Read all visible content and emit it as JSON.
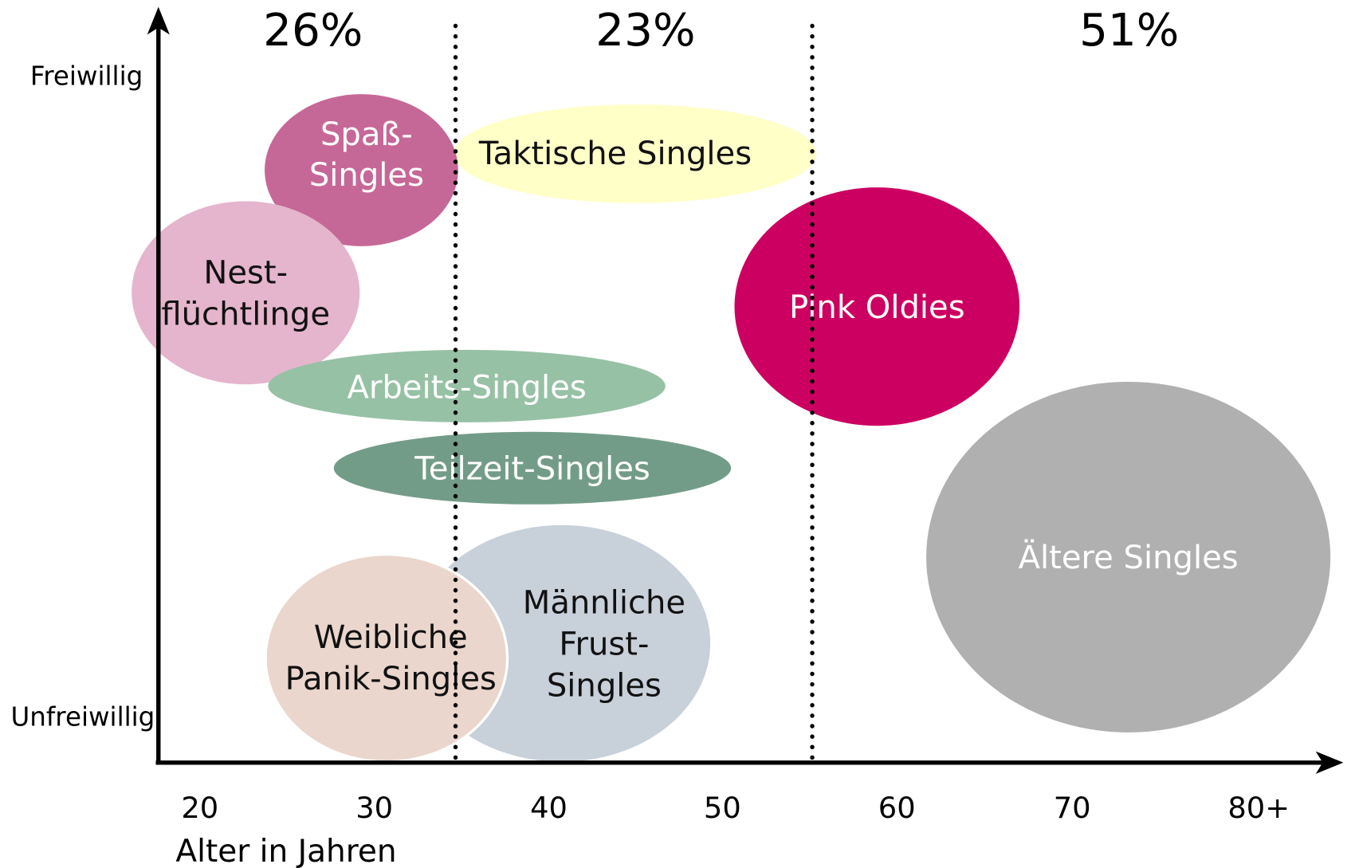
{
  "segments": [
    "26%",
    "23%",
    "51%"
  ],
  "y_axis": {
    "top_label": "Freiwillig",
    "bottom_label": "Unfreiwillig"
  },
  "x_axis": {
    "ticks": [
      "20",
      "30",
      "40",
      "50",
      "60",
      "70",
      "80+"
    ],
    "title": "Alter in Jahren"
  },
  "bubbles": [
    {
      "lines": [
        "Taktische Singles"
      ]
    },
    {
      "lines": [
        "Spaß-",
        "Singles"
      ]
    },
    {
      "lines": [
        "Nest-",
        "flüchtlinge"
      ]
    },
    {
      "lines": [
        "Arbeits-Singles"
      ]
    },
    {
      "lines": [
        "Teilzeit-Singles"
      ]
    },
    {
      "lines": [
        "Männliche",
        "Frust-",
        "Singles"
      ]
    },
    {
      "lines": [
        "Weibliche",
        "Panik-Singles"
      ]
    },
    {
      "lines": [
        "Pink Oldies"
      ]
    },
    {
      "lines": [
        "Ältere Singles"
      ]
    }
  ]
}
